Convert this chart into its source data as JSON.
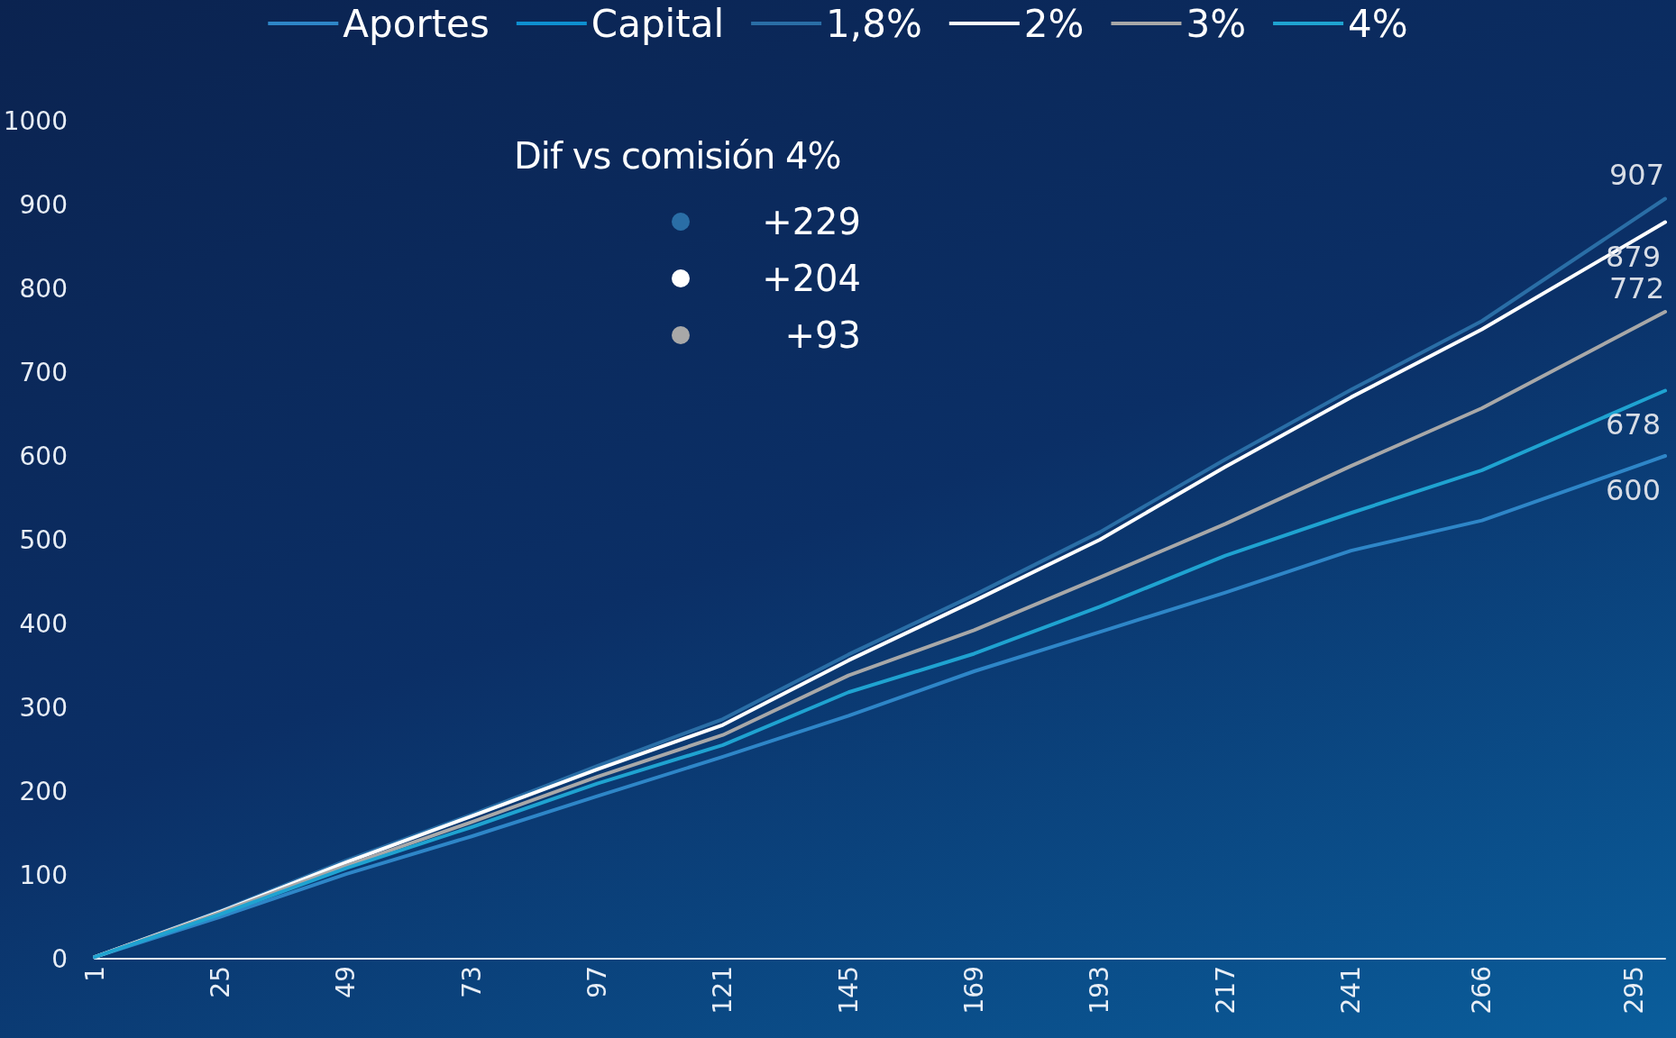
{
  "chart_data": {
    "type": "line",
    "x": [
      1,
      25,
      49,
      73,
      97,
      121,
      145,
      169,
      193,
      217,
      241,
      266,
      301
    ],
    "xlim": [
      1,
      301
    ],
    "xticks": [
      1,
      25,
      49,
      73,
      97,
      121,
      145,
      169,
      193,
      217,
      241,
      266,
      295
    ],
    "ylim": [
      0,
      1000
    ],
    "yticks": [
      0,
      100,
      200,
      300,
      400,
      500,
      600,
      700,
      800,
      900,
      1000
    ],
    "series": [
      {
        "name": "Aportes",
        "color": "#2e86c8",
        "values": [
          2,
          50,
          101,
          146,
          194,
          241,
          290,
          343,
          390,
          437,
          487,
          523,
          600
        ],
        "value_labels": [
          null,
          null,
          null,
          null,
          null,
          null,
          null,
          null,
          null,
          null,
          null,
          null,
          "600"
        ]
      },
      {
        "name": "Capital",
        "color": "#0e8fd0",
        "values": [
          null,
          null,
          null,
          null,
          null,
          null,
          null,
          null,
          null,
          null,
          null,
          null,
          null
        ]
      },
      {
        "name": "1,8%",
        "color": "#2a6ea6",
        "values": [
          2,
          57,
          117,
          172,
          230,
          286,
          363,
          434,
          509,
          596,
          679,
          761,
          907
        ],
        "value_labels": [
          null,
          null,
          null,
          null,
          null,
          null,
          null,
          null,
          null,
          null,
          null,
          null,
          "907"
        ]
      },
      {
        "name": "2%",
        "color": "#ffffff",
        "values": [
          2,
          56,
          115,
          170,
          226,
          279,
          356,
          427,
          500,
          587,
          670,
          751,
          879
        ],
        "value_labels": [
          null,
          null,
          null,
          null,
          null,
          null,
          null,
          null,
          null,
          null,
          null,
          null,
          "879"
        ]
      },
      {
        "name": "3%",
        "color": "#a8a8a8",
        "values": [
          2,
          55,
          111,
          163,
          217,
          267,
          338,
          392,
          455,
          519,
          588,
          657,
          772
        ],
        "value_labels": [
          null,
          null,
          null,
          null,
          null,
          null,
          null,
          null,
          null,
          null,
          null,
          null,
          "772"
        ]
      },
      {
        "name": "4%",
        "color": "#1fa3d1",
        "values": [
          2,
          53,
          108,
          157,
          209,
          255,
          318,
          364,
          420,
          481,
          532,
          583,
          678
        ],
        "value_labels": [
          null,
          null,
          null,
          null,
          null,
          null,
          null,
          null,
          null,
          null,
          null,
          null,
          "678"
        ]
      }
    ],
    "annotations": [
      "Dif vs comisión 4%",
      "+229",
      "+204",
      "+93"
    ],
    "legend": "top",
    "grid": false,
    "marker": "none",
    "line_style": "solid"
  }
}
